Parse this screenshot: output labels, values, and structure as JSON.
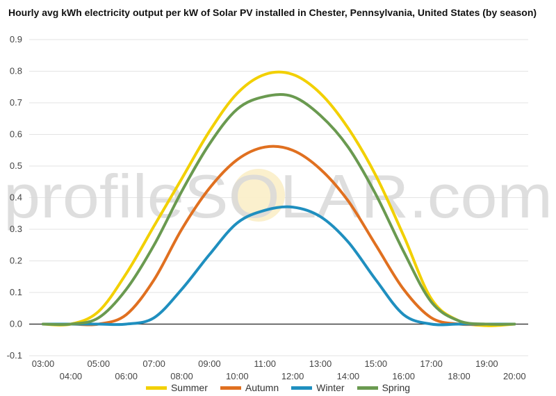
{
  "chart_data": {
    "type": "line",
    "title": "Hourly avg kWh electricity output per kW of Solar PV installed in Chester, Pennsylvania, United States (by season)",
    "xlabel": "",
    "ylabel": "",
    "x": [
      "03:00",
      "04:00",
      "05:00",
      "06:00",
      "07:00",
      "08:00",
      "09:00",
      "10:00",
      "11:00",
      "12:00",
      "13:00",
      "14:00",
      "15:00",
      "16:00",
      "17:00",
      "18:00",
      "19:00",
      "20:00"
    ],
    "x_tick_labels_upper": [
      "03:00",
      "05:00",
      "07:00",
      "09:00",
      "11:00",
      "13:00",
      "15:00",
      "17:00",
      "19:00"
    ],
    "x_tick_labels_lower": [
      "04:00",
      "06:00",
      "08:00",
      "10:00",
      "12:00",
      "14:00",
      "16:00",
      "18:00",
      "20:00"
    ],
    "ylim": [
      -0.1,
      0.9
    ],
    "y_ticks": [
      "-0.1",
      "0.0",
      "0.1",
      "0.2",
      "0.3",
      "0.4",
      "0.5",
      "0.6",
      "0.7",
      "0.8",
      "0.9"
    ],
    "grid": true,
    "legend_position": "bottom",
    "watermark": "profileSOLAR.com",
    "series": [
      {
        "name": "Summer",
        "color": "#f2d000",
        "values": [
          0.0,
          0.0,
          0.04,
          0.16,
          0.31,
          0.46,
          0.61,
          0.73,
          0.79,
          0.79,
          0.73,
          0.62,
          0.47,
          0.28,
          0.08,
          0.01,
          -0.005,
          0.0
        ]
      },
      {
        "name": "Autumn",
        "color": "#e07020",
        "values": [
          0.0,
          0.0,
          0.0,
          0.03,
          0.14,
          0.3,
          0.43,
          0.52,
          0.56,
          0.55,
          0.49,
          0.39,
          0.25,
          0.11,
          0.02,
          0.0,
          0.0,
          0.0
        ]
      },
      {
        "name": "Winter",
        "color": "#1f8fbf",
        "values": [
          0.0,
          0.0,
          0.0,
          0.0,
          0.02,
          0.11,
          0.22,
          0.32,
          0.36,
          0.37,
          0.34,
          0.26,
          0.14,
          0.03,
          0.0,
          0.0,
          0.0,
          0.0
        ]
      },
      {
        "name": "Spring",
        "color": "#6a9a50",
        "values": [
          0.0,
          0.0,
          0.02,
          0.11,
          0.25,
          0.42,
          0.57,
          0.68,
          0.72,
          0.72,
          0.66,
          0.56,
          0.41,
          0.23,
          0.07,
          0.01,
          0.0,
          0.0
        ]
      }
    ]
  }
}
